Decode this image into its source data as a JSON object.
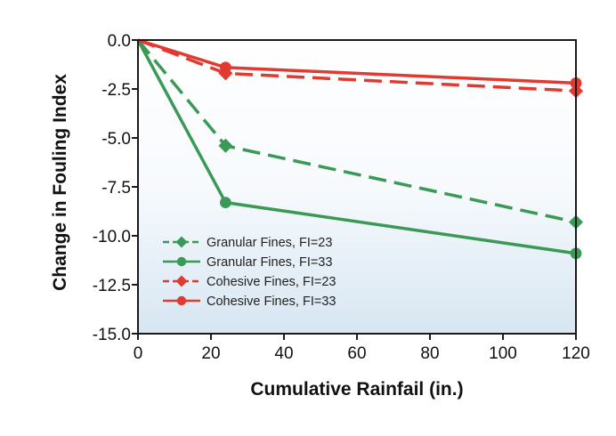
{
  "chart_data": {
    "type": "line",
    "title": "",
    "xlabel": "Cumulative Rainfail (in.)",
    "ylabel": "Change in Fouling Index",
    "xlim": [
      0,
      120
    ],
    "ylim": [
      -15,
      0
    ],
    "x_ticks": [
      0,
      20,
      40,
      60,
      80,
      100,
      120
    ],
    "y_ticks": [
      0,
      -2.5,
      -5,
      -7.5,
      -10,
      -12.5,
      -15
    ],
    "y_tick_labels": [
      "0.0",
      "-2.5",
      "-5.0",
      "-7.5",
      "-10.0",
      "-12.5",
      "-15.0"
    ],
    "legend_position": "lower-left",
    "grid": false,
    "series": [
      {
        "name": "Granular Fines, FI=23",
        "color": "#3a9a55",
        "dash": "dashed",
        "marker": "diamond",
        "x": [
          0,
          24,
          120
        ],
        "y": [
          0,
          -5.4,
          -9.3
        ]
      },
      {
        "name": "Granular Fines, FI=33",
        "color": "#3a9a55",
        "dash": "solid",
        "marker": "circle",
        "x": [
          0,
          24,
          120
        ],
        "y": [
          0,
          -8.3,
          -10.9
        ]
      },
      {
        "name": "Cohesive Fines, FI=23",
        "color": "#e03a32",
        "dash": "dashed",
        "marker": "diamond",
        "x": [
          0,
          24,
          120
        ],
        "y": [
          0,
          -1.7,
          -2.6
        ]
      },
      {
        "name": "Cohesive Fines, FI=33",
        "color": "#e03a32",
        "dash": "solid",
        "marker": "circle",
        "x": [
          0,
          24,
          120
        ],
        "y": [
          0,
          -1.4,
          -2.2
        ]
      }
    ]
  }
}
